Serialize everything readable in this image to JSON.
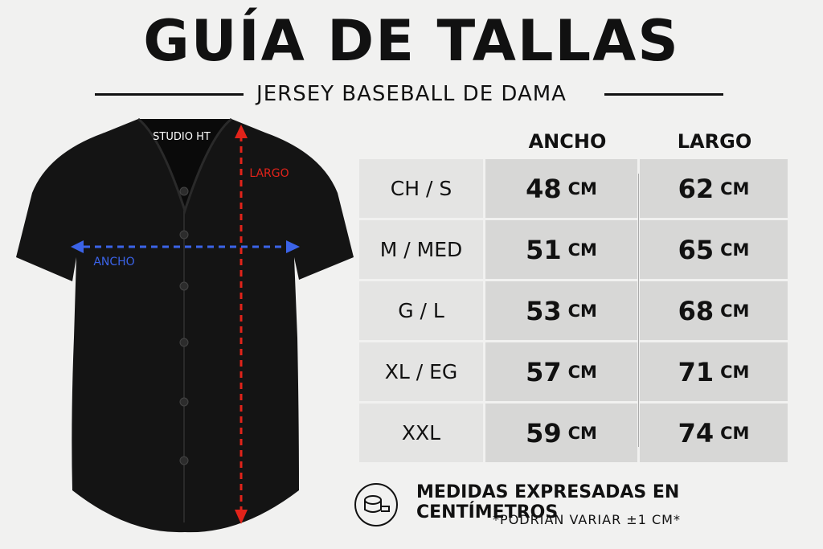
{
  "header": {
    "title": "GUÍA DE TALLAS",
    "subtitle": "JERSEY BASEBALL DE DAMA"
  },
  "jersey": {
    "brand": "STUDIO HT",
    "largo_label": "LARGO",
    "ancho_label": "ANCHO"
  },
  "table": {
    "columns": [
      "ANCHO",
      "LARGO"
    ],
    "unit": "CM",
    "rows": [
      {
        "size": "CH / S",
        "ancho": 48,
        "largo": 62
      },
      {
        "size": "M / MED",
        "ancho": 51,
        "largo": 65
      },
      {
        "size": "G / L",
        "ancho": 53,
        "largo": 68
      },
      {
        "size": "XL / EG",
        "ancho": 57,
        "largo": 71
      },
      {
        "size": "XXL",
        "ancho": 59,
        "largo": 74
      }
    ]
  },
  "footer": {
    "note": "MEDIDAS EXPRESADAS EN CENTÍMETROS",
    "disclaimer": "*PODRÍAN VARIAR ±1 CM*"
  }
}
